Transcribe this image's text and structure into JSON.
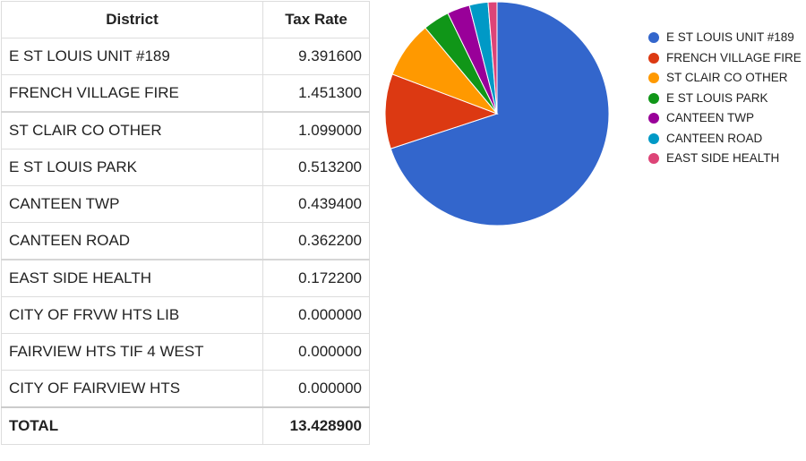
{
  "table": {
    "headers": {
      "district": "District",
      "rate": "Tax Rate"
    },
    "rows": [
      {
        "district": "E ST LOUIS UNIT #189",
        "rate": "9.391600"
      },
      {
        "district": "FRENCH VILLAGE FIRE",
        "rate": "1.451300"
      },
      {
        "district": "ST CLAIR CO OTHER",
        "rate": "1.099000"
      },
      {
        "district": "E ST LOUIS PARK",
        "rate": "0.513200"
      },
      {
        "district": "CANTEEN TWP",
        "rate": "0.439400"
      },
      {
        "district": "CANTEEN ROAD",
        "rate": "0.362200"
      },
      {
        "district": "EAST SIDE HEALTH",
        "rate": "0.172200"
      },
      {
        "district": "CITY OF FRVW HTS LIB",
        "rate": "0.000000"
      },
      {
        "district": "FAIRVIEW HTS TIF 4 WEST",
        "rate": "0.000000"
      },
      {
        "district": "CITY OF FAIRVIEW HTS",
        "rate": "0.000000"
      }
    ],
    "total": {
      "label": "TOTAL",
      "rate": "13.428900"
    }
  },
  "legend": {
    "items": [
      {
        "label": "E ST LOUIS UNIT #189",
        "color": "#3366cc"
      },
      {
        "label": "FRENCH VILLAGE FIRE",
        "color": "#dc3912"
      },
      {
        "label": "ST CLAIR CO OTHER",
        "color": "#ff9900"
      },
      {
        "label": "E ST LOUIS PARK",
        "color": "#109618"
      },
      {
        "label": "CANTEEN TWP",
        "color": "#990099"
      },
      {
        "label": "CANTEEN ROAD",
        "color": "#0099c6"
      },
      {
        "label": "EAST SIDE HEALTH",
        "color": "#dd4477"
      }
    ],
    "position": "right"
  },
  "chart_data": {
    "type": "pie",
    "categories": [
      "E ST LOUIS UNIT #189",
      "FRENCH VILLAGE FIRE",
      "ST CLAIR CO OTHER",
      "E ST LOUIS PARK",
      "CANTEEN TWP",
      "CANTEEN ROAD",
      "EAST SIDE HEALTH"
    ],
    "values": [
      9.3916,
      1.4513,
      1.099,
      0.5132,
      0.4394,
      0.3622,
      0.1722
    ],
    "colors": [
      "#3366cc",
      "#dc3912",
      "#ff9900",
      "#109618",
      "#990099",
      "#0099c6",
      "#dd4477"
    ],
    "title": "",
    "legend": "right"
  }
}
